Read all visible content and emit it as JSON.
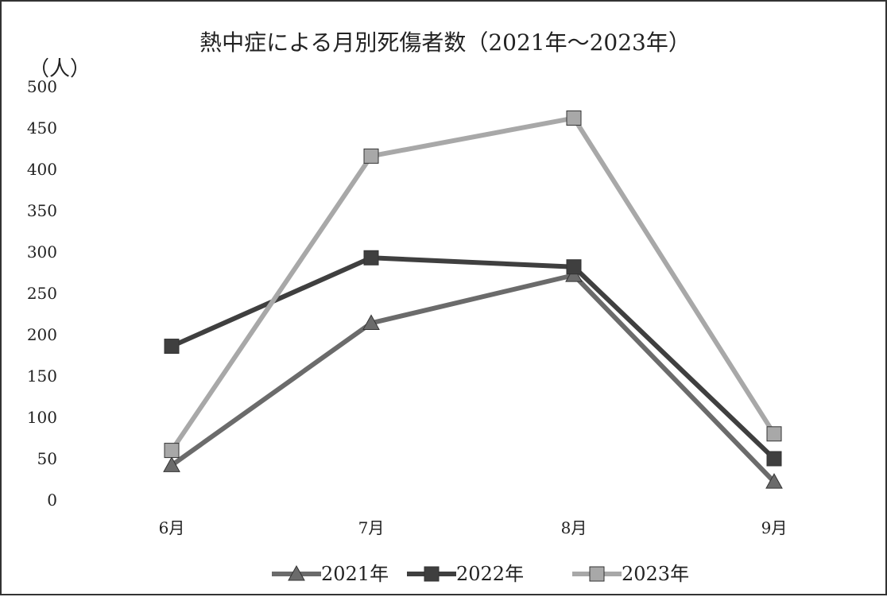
{
  "chart_data": {
    "type": "line",
    "title": "熱中症による月別死傷者数（2021年～2023年）",
    "ylabel": "（人）",
    "xlabel": "",
    "categories": [
      "6月",
      "7月",
      "8月",
      "9月"
    ],
    "ylim": [
      0,
      500
    ],
    "yticks": [
      0,
      50,
      100,
      150,
      200,
      250,
      300,
      350,
      400,
      450,
      500
    ],
    "grid": false,
    "legend_position": "bottom",
    "series": [
      {
        "name": "2021年",
        "values": [
          42,
          214,
          272,
          22
        ],
        "color": "#6b6b6b",
        "marker": "triangle"
      },
      {
        "name": "2022年",
        "values": [
          186,
          293,
          282,
          50
        ],
        "color": "#3f3f3f",
        "marker": "square"
      },
      {
        "name": "2023年",
        "values": [
          60,
          416,
          462,
          80
        ],
        "color": "#a8a8a8",
        "marker": "square"
      }
    ]
  }
}
